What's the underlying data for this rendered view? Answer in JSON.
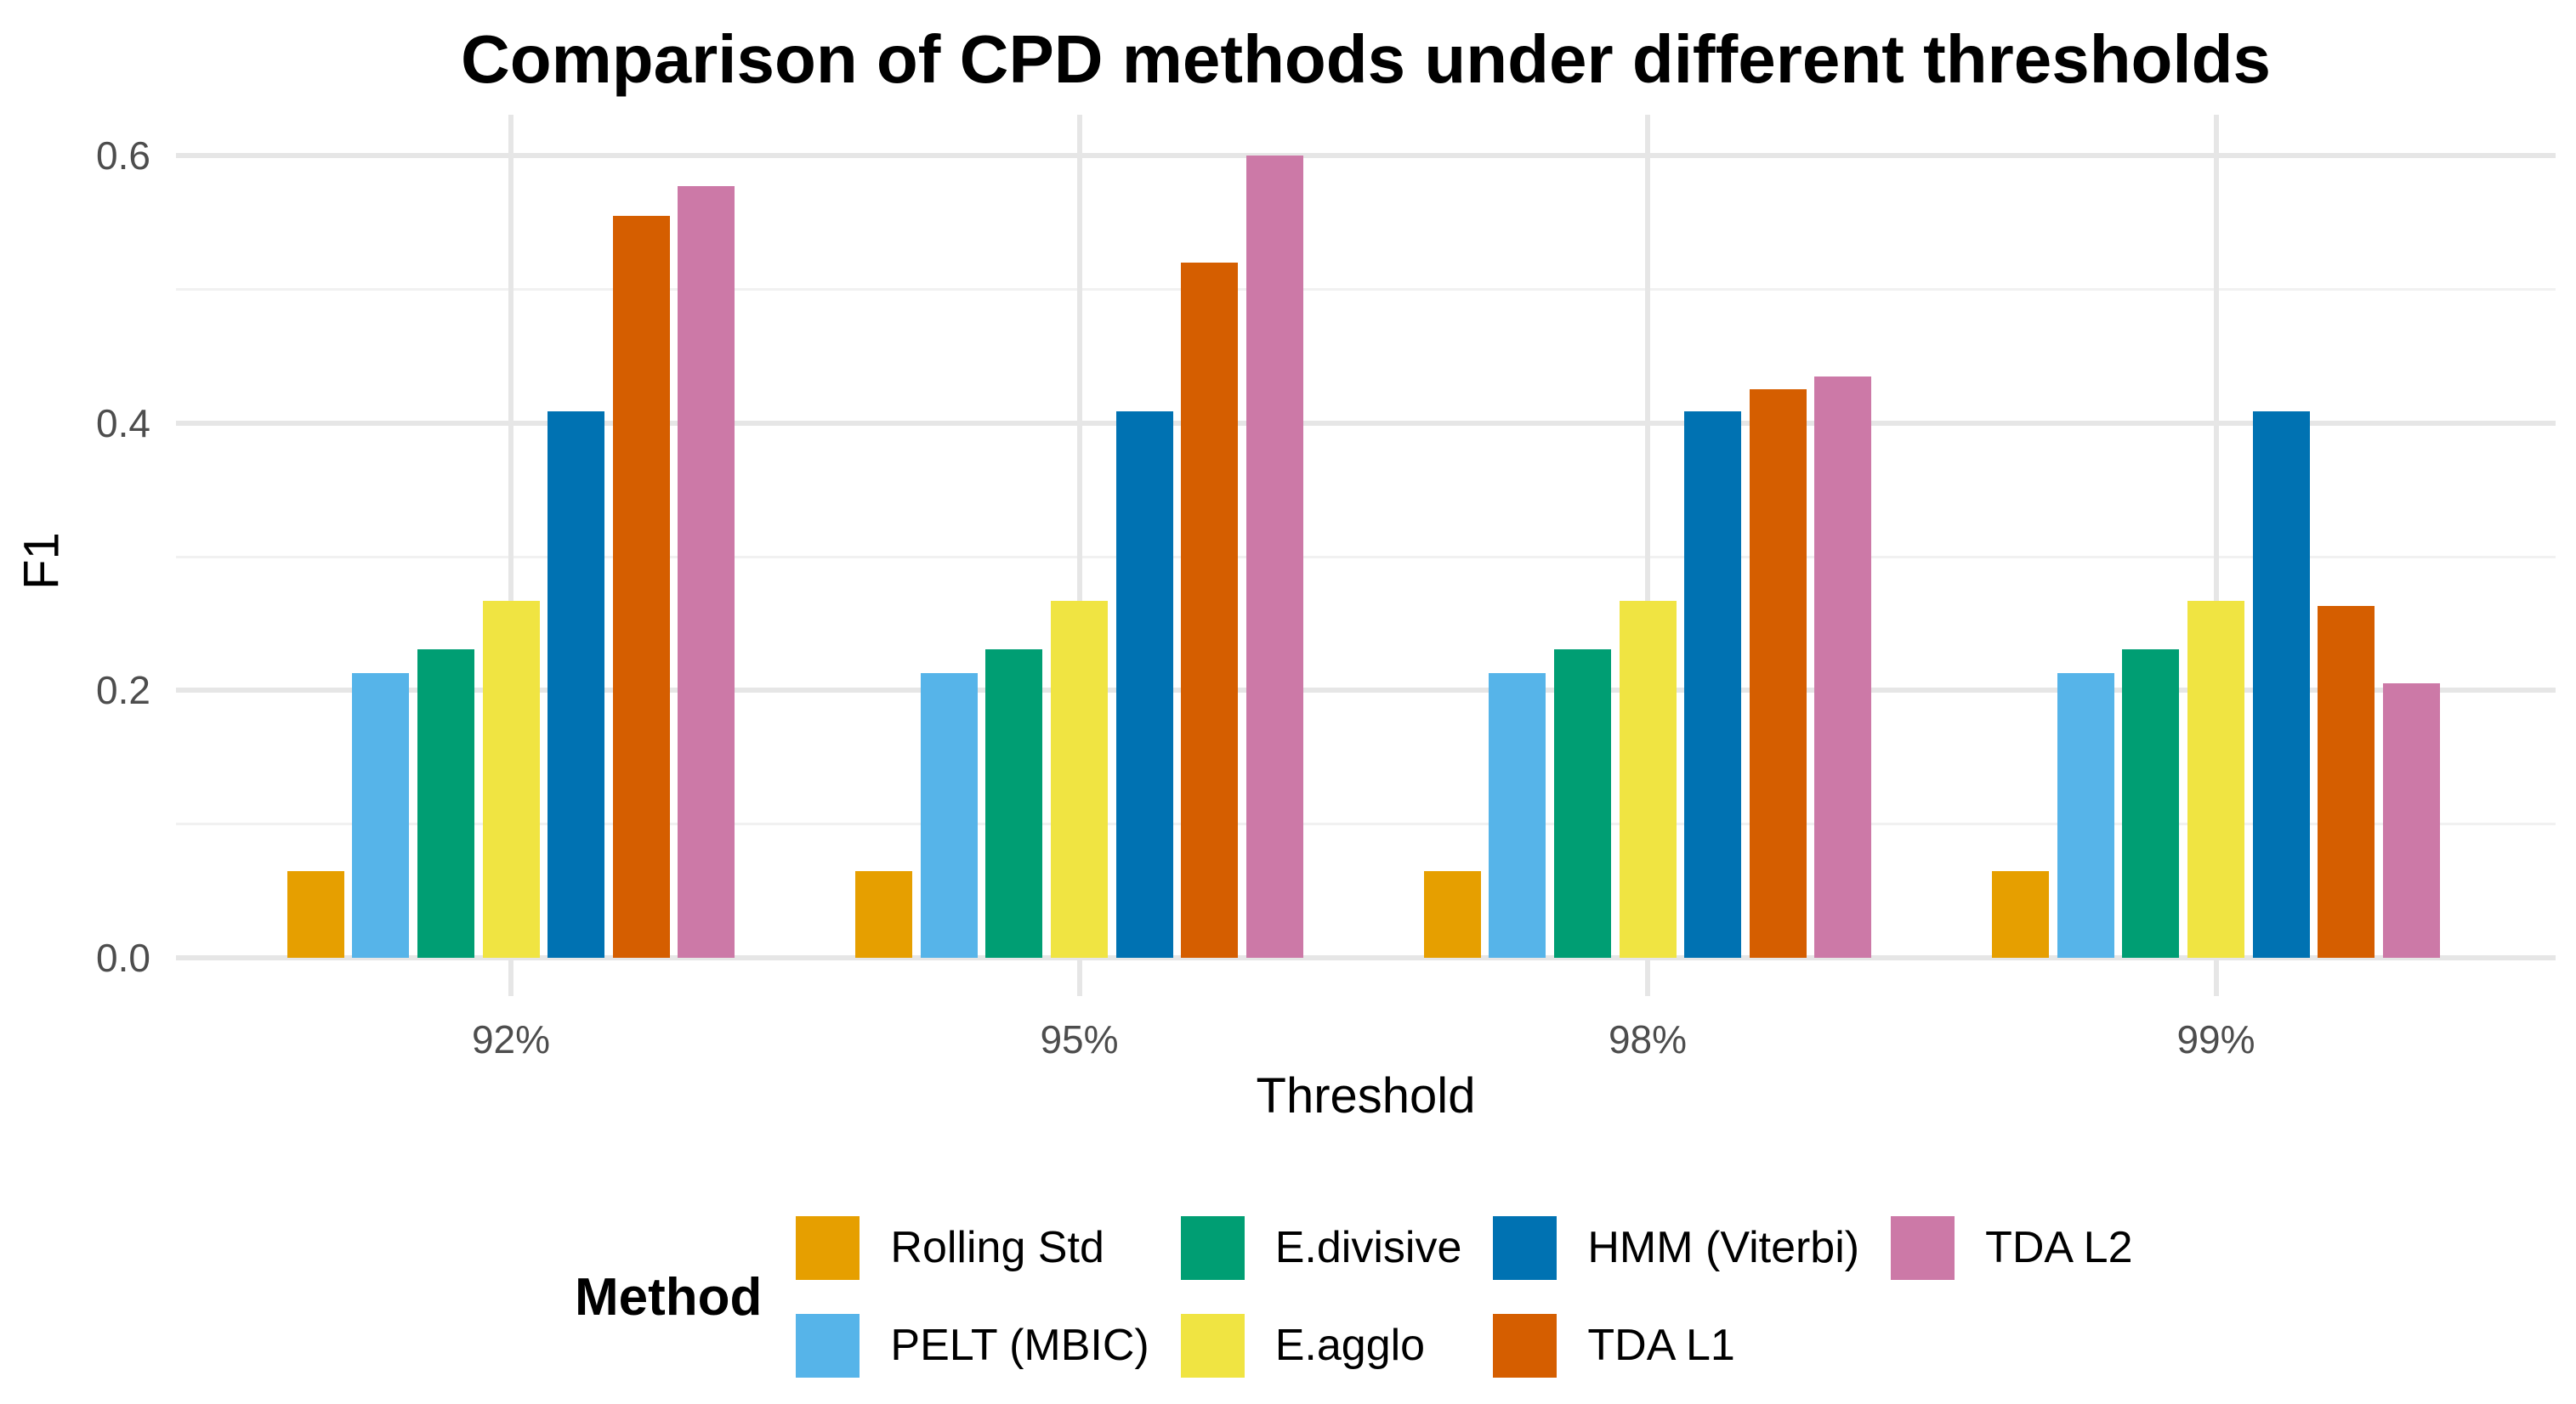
{
  "chart_data": {
    "type": "bar",
    "title": "Comparison of CPD methods under different thresholds",
    "xlabel": "Threshold",
    "ylabel": "F1",
    "legend_title": "Method",
    "legend_position": "bottom",
    "grid": true,
    "categories": [
      "92%",
      "95%",
      "98%",
      "99%"
    ],
    "y_tick_labels": [
      "0.0",
      "0.2",
      "0.4",
      "0.6"
    ],
    "y_tick_values": [
      0.0,
      0.2,
      0.4,
      0.6
    ],
    "y_minor_values": [
      0.1,
      0.3,
      0.5
    ],
    "ylim": [
      0,
      0.6
    ],
    "series": [
      {
        "name": "Rolling Std",
        "color": "#E69F00",
        "values": [
          0.065,
          0.065,
          0.065,
          0.065
        ]
      },
      {
        "name": "PELT (MBIC)",
        "color": "#56B4E9",
        "values": [
          0.213,
          0.213,
          0.213,
          0.213
        ]
      },
      {
        "name": "E.divisive",
        "color": "#009E73",
        "values": [
          0.231,
          0.231,
          0.231,
          0.231
        ]
      },
      {
        "name": "E.agglo",
        "color": "#F0E442",
        "values": [
          0.267,
          0.267,
          0.267,
          0.267
        ]
      },
      {
        "name": "HMM (Viterbi)",
        "color": "#0072B2",
        "values": [
          0.409,
          0.409,
          0.409,
          0.409
        ]
      },
      {
        "name": "TDA L1",
        "color": "#D55E00",
        "values": [
          0.555,
          0.52,
          0.425,
          0.263
        ]
      },
      {
        "name": "TDA L2",
        "color": "#CC79A7",
        "values": [
          0.577,
          0.6,
          0.435,
          0.205
        ]
      }
    ],
    "colors": {
      "background": "#FFFFFF",
      "title_text": "#000000",
      "tick_label_text": "#4D4D4D",
      "grid_major": "#E6E6E6",
      "grid_minor": "#F1F1F1"
    }
  }
}
